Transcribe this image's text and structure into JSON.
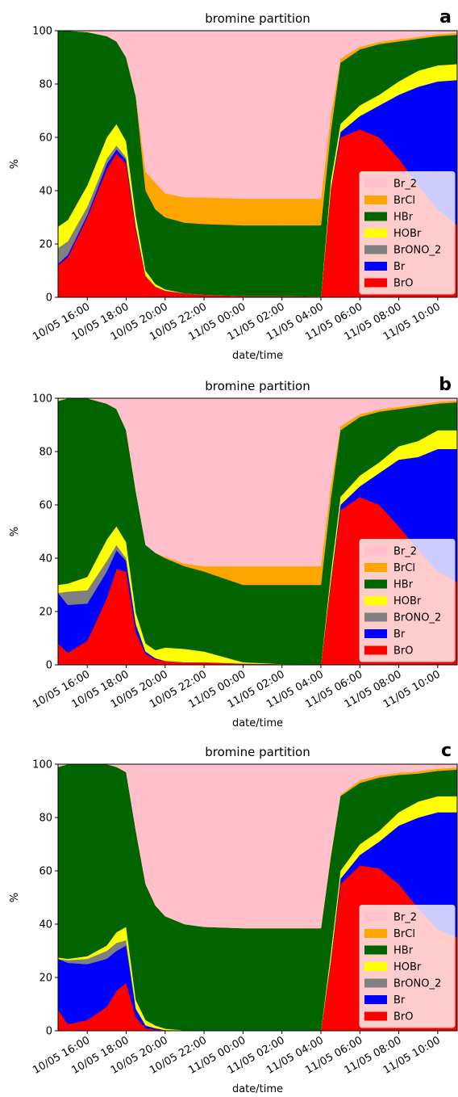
{
  "chart_data": [
    {
      "type": "stacked_area",
      "title": "bromine partition",
      "label": "a",
      "xlabel": "date/time",
      "ylabel": "%",
      "x": [
        "10/05 14:30",
        "10/05 15:00",
        "10/05 16:00",
        "10/05 17:00",
        "10/05 17:30",
        "10/05 18:00",
        "10/05 18:30",
        "10/05 19:00",
        "10/05 19:30",
        "10/05 20:00",
        "10/05 21:00",
        "10/05 22:00",
        "11/05 00:00",
        "11/05 02:00",
        "11/05 04:00",
        "11/05 04:30",
        "11/05 05:00",
        "11/05 06:00",
        "11/05 07:00",
        "11/05 08:00",
        "11/05 09:00",
        "11/05 10:00",
        "11/05 11:00"
      ],
      "xlim": [
        "10/05 14:30",
        "11/05 11:00"
      ],
      "xticks": [
        "10/05 16:00",
        "10/05 18:00",
        "10/05 20:00",
        "10/05 22:00",
        "11/05 00:00",
        "11/05 02:00",
        "11/05 04:00",
        "11/05 06:00",
        "11/05 08:00",
        "11/05 10:00"
      ],
      "ylim": [
        0,
        100
      ],
      "yticks": [
        0,
        20,
        40,
        60,
        80,
        100
      ],
      "legend": "lower right",
      "series": [
        {
          "name": "BrO",
          "color": "#ff0000",
          "values": [
            12,
            15,
            30,
            48,
            54,
            50,
            25,
            8,
            4,
            2.5,
            1.5,
            1,
            0.5,
            0.5,
            0.3,
            40,
            60,
            63,
            60,
            52,
            42,
            33,
            27
          ]
        },
        {
          "name": "Br",
          "color": "#0000ff",
          "values": [
            0.5,
            1,
            1,
            2,
            1.5,
            1.5,
            1,
            0,
            0,
            0,
            0,
            0,
            0,
            0,
            0,
            0.5,
            2,
            5,
            12,
            24,
            37,
            48,
            54.5
          ]
        },
        {
          "name": "BrONO_2",
          "color": "#808080",
          "values": [
            6,
            5,
            3,
            2,
            1.5,
            1,
            0.5,
            0,
            0,
            0,
            0,
            0,
            0,
            0,
            0,
            0,
            0,
            0,
            0,
            0,
            0,
            0,
            0
          ]
        },
        {
          "name": "HOBr",
          "color": "#ffff00",
          "values": [
            8,
            8,
            8,
            8,
            8,
            6,
            4,
            2,
            1,
            0.5,
            0,
            0,
            0,
            0,
            0,
            3,
            3,
            4,
            4,
            5,
            6,
            6,
            6
          ]
        },
        {
          "name": "HBr",
          "color": "#006400",
          "values": [
            73.5,
            71,
            57.5,
            38,
            31,
            31.5,
            44.5,
            30,
            28,
            27,
            26.5,
            26.5,
            26.5,
            26.5,
            26.7,
            18.5,
            23,
            21,
            19,
            15,
            12,
            11,
            11
          ]
        },
        {
          "name": "BrCl",
          "color": "#ffa500",
          "values": [
            0,
            0,
            0,
            0,
            0,
            0,
            0.5,
            7,
            10,
            9,
            9.5,
            10,
            10,
            10,
            10,
            6,
            1.5,
            1,
            0.8,
            0.8,
            0.7,
            0.7,
            0.7
          ]
        },
        {
          "name": "Br_2",
          "color": "#ffc0cb",
          "values": [
            0,
            0,
            0.5,
            2,
            4,
            10,
            24.5,
            53,
            57,
            61,
            62.5,
            62.5,
            63,
            63,
            63,
            32,
            10.5,
            6,
            4.2,
            3.2,
            2.3,
            1.3,
            0.8
          ]
        }
      ]
    },
    {
      "type": "stacked_area",
      "title": "bromine partition",
      "label": "b",
      "xlabel": "date/time",
      "ylabel": "%",
      "x": [
        "10/05 14:30",
        "10/05 15:00",
        "10/05 16:00",
        "10/05 17:00",
        "10/05 17:30",
        "10/05 18:00",
        "10/05 18:30",
        "10/05 19:00",
        "10/05 19:30",
        "10/05 20:00",
        "10/05 21:00",
        "10/05 22:00",
        "11/05 00:00",
        "11/05 02:00",
        "11/05 04:00",
        "11/05 04:30",
        "11/05 05:00",
        "11/05 06:00",
        "11/05 07:00",
        "11/05 08:00",
        "11/05 09:00",
        "11/05 10:00",
        "11/05 11:00"
      ],
      "xlim": [
        "10/05 14:30",
        "11/05 11:00"
      ],
      "xticks": [
        "10/05 16:00",
        "10/05 18:00",
        "10/05 20:00",
        "10/05 22:00",
        "11/05 00:00",
        "11/05 02:00",
        "11/05 04:00",
        "11/05 06:00",
        "11/05 08:00",
        "11/05 10:00"
      ],
      "ylim": [
        0,
        100
      ],
      "yticks": [
        0,
        20,
        40,
        60,
        80,
        100
      ],
      "legend": "lower right",
      "series": [
        {
          "name": "BrO",
          "color": "#ff0000",
          "values": [
            8,
            4.5,
            9,
            25,
            36,
            35,
            12,
            4,
            2,
            1.5,
            1,
            1,
            0.5,
            0.3,
            0.2,
            30,
            58,
            63,
            60,
            52,
            43,
            35,
            31
          ]
        },
        {
          "name": "Br",
          "color": "#0000ff",
          "values": [
            19,
            18,
            14,
            10,
            7,
            4,
            3,
            1,
            0.5,
            0,
            0,
            0,
            0,
            0,
            0,
            1,
            2,
            4,
            12,
            25,
            35,
            46,
            50
          ]
        },
        {
          "name": "BrONO_2",
          "color": "#808080",
          "values": [
            0,
            5,
            5,
            4,
            2,
            1,
            0.5,
            0,
            0,
            0,
            0,
            0,
            0,
            0,
            0,
            0,
            0,
            0,
            0,
            0,
            0,
            0,
            0
          ]
        },
        {
          "name": "HOBr",
          "color": "#ffff00",
          "values": [
            3,
            3,
            5,
            8,
            7,
            6,
            4,
            3,
            3,
            5,
            5,
            4,
            0.5,
            0,
            0,
            3,
            3,
            4,
            4,
            5,
            6,
            7,
            7
          ]
        },
        {
          "name": "HBr",
          "color": "#006400",
          "values": [
            69,
            69.5,
            67,
            51,
            44,
            42,
            45.5,
            37,
            36.5,
            33.5,
            31,
            30,
            29,
            29.7,
            29.8,
            28,
            25,
            22,
            19,
            14,
            13,
            10,
            10.5
          ]
        },
        {
          "name": "BrCl",
          "color": "#ffa500",
          "values": [
            0,
            0,
            0,
            0,
            0,
            0,
            0,
            0,
            0,
            0.5,
            1,
            2,
            7,
            7,
            7,
            5,
            1.5,
            1,
            0.8,
            0.8,
            0.7,
            0.7,
            0.7
          ]
        },
        {
          "name": "Br_2",
          "color": "#ffc0cb",
          "values": [
            1,
            0,
            0,
            2,
            4,
            12,
            35,
            55,
            58,
            59.5,
            62,
            63,
            63,
            63,
            63,
            33,
            10.5,
            6,
            4.2,
            3.2,
            2.3,
            1.3,
            0.8
          ]
        }
      ]
    },
    {
      "type": "stacked_area",
      "title": "bromine partition",
      "label": "c",
      "xlabel": "date/time",
      "ylabel": "%",
      "x": [
        "10/05 14:30",
        "10/05 15:00",
        "10/05 16:00",
        "10/05 17:00",
        "10/05 17:30",
        "10/05 18:00",
        "10/05 18:30",
        "10/05 19:00",
        "10/05 19:30",
        "10/05 20:00",
        "10/05 21:00",
        "10/05 22:00",
        "11/05 00:00",
        "11/05 02:00",
        "11/05 04:00",
        "11/05 04:30",
        "11/05 05:00",
        "11/05 06:00",
        "11/05 07:00",
        "11/05 08:00",
        "11/05 09:00",
        "11/05 10:00",
        "11/05 11:00"
      ],
      "xlim": [
        "10/05 14:30",
        "11/05 11:00"
      ],
      "xticks": [
        "10/05 16:00",
        "10/05 18:00",
        "10/05 20:00",
        "10/05 22:00",
        "11/05 00:00",
        "11/05 02:00",
        "11/05 04:00",
        "11/05 06:00",
        "11/05 08:00",
        "11/05 10:00"
      ],
      "ylim": [
        0,
        100
      ],
      "yticks": [
        0,
        20,
        40,
        60,
        80,
        100
      ],
      "legend": "lower right",
      "series": [
        {
          "name": "BrO",
          "color": "#ff0000",
          "values": [
            8,
            2.5,
            4,
            9,
            15,
            18,
            5,
            1,
            0.5,
            0.3,
            0.2,
            0.2,
            0.2,
            0.2,
            0.2,
            25,
            55,
            62,
            61,
            55,
            46,
            38,
            35
          ]
        },
        {
          "name": "Br",
          "color": "#0000ff",
          "values": [
            19,
            23,
            21,
            18,
            15,
            14,
            3,
            1,
            0.5,
            0,
            0,
            0,
            0,
            0,
            0,
            1,
            2,
            4,
            10,
            22,
            34,
            44,
            47
          ]
        },
        {
          "name": "BrONO_2",
          "color": "#808080",
          "values": [
            0,
            1,
            2,
            3,
            3,
            2,
            0.5,
            0,
            0,
            0,
            0,
            0,
            0,
            0,
            0,
            0,
            0,
            0,
            0,
            0,
            0,
            0,
            0
          ]
        },
        {
          "name": "HOBr",
          "color": "#ffff00",
          "values": [
            0.5,
            0.5,
            1,
            2,
            4,
            5,
            3,
            2,
            1,
            0.5,
            0,
            0,
            0,
            0,
            0,
            3,
            3,
            4,
            4,
            5,
            6,
            6,
            6
          ]
        },
        {
          "name": "HBr",
          "color": "#006400",
          "values": [
            71.5,
            73,
            72,
            68,
            62,
            58,
            63.5,
            51,
            45,
            42.2,
            39.8,
            38.8,
            38.3,
            38.3,
            38.3,
            36,
            28,
            23,
            20,
            14,
            10.5,
            9.5,
            10
          ]
        },
        {
          "name": "BrCl",
          "color": "#ffa500",
          "values": [
            0,
            0,
            0,
            0,
            0,
            0,
            0,
            0,
            0,
            0,
            0,
            0,
            0,
            0,
            0,
            0.5,
            0.5,
            1,
            0.8,
            0.8,
            0.8,
            0.8,
            0.8
          ]
        },
        {
          "name": "Br_2",
          "color": "#ffc0cb",
          "values": [
            1,
            0,
            0,
            0,
            1,
            3,
            25,
            45,
            53,
            57,
            60,
            61,
            61.5,
            61.5,
            61.5,
            34.5,
            11.5,
            6,
            4.2,
            3.2,
            2.7,
            1.7,
            1.2
          ]
        }
      ]
    }
  ]
}
